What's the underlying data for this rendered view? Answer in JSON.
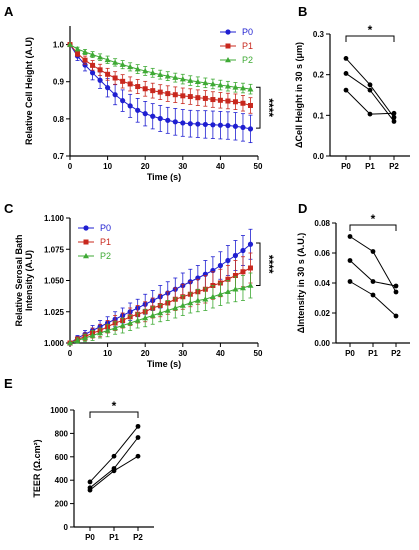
{
  "colors": {
    "P0": "#1f1fd1",
    "P1": "#c8281e",
    "P2": "#3faa35"
  },
  "chart_data": [
    {
      "panel": "A",
      "type": "line",
      "xlabel": "Time (s)",
      "ylabel": "Relative Cell Height (A.U)",
      "xlim": [
        0,
        50
      ],
      "ylim": [
        0.7,
        1.05
      ],
      "xticks": [
        0,
        10,
        20,
        30,
        40,
        50
      ],
      "yticks": [
        0.7,
        0.8,
        0.9,
        1.0
      ],
      "x": [
        0,
        2,
        4,
        6,
        8,
        10,
        12,
        14,
        16,
        18,
        20,
        22,
        24,
        26,
        28,
        30,
        32,
        34,
        36,
        38,
        40,
        42,
        44,
        46,
        48
      ],
      "series": [
        {
          "name": "P0",
          "marker": "circle",
          "values": [
            1.0,
            0.969,
            0.945,
            0.924,
            0.904,
            0.884,
            0.865,
            0.849,
            0.835,
            0.823,
            0.814,
            0.807,
            0.801,
            0.796,
            0.792,
            0.789,
            0.787,
            0.786,
            0.785,
            0.784,
            0.783,
            0.782,
            0.78,
            0.777,
            0.773
          ],
          "err": [
            0,
            0.012,
            0.016,
            0.019,
            0.022,
            0.025,
            0.027,
            0.029,
            0.031,
            0.032,
            0.033,
            0.034,
            0.035,
            0.035,
            0.036,
            0.036,
            0.036,
            0.036,
            0.037,
            0.037,
            0.037,
            0.037,
            0.037,
            0.037,
            0.037
          ]
        },
        {
          "name": "P1",
          "marker": "square",
          "values": [
            1.0,
            0.976,
            0.958,
            0.944,
            0.932,
            0.92,
            0.91,
            0.901,
            0.894,
            0.887,
            0.881,
            0.876,
            0.872,
            0.868,
            0.865,
            0.862,
            0.86,
            0.857,
            0.855,
            0.852,
            0.85,
            0.848,
            0.846,
            0.842,
            0.836
          ],
          "err": [
            0,
            0.008,
            0.011,
            0.013,
            0.015,
            0.016,
            0.017,
            0.018,
            0.019,
            0.019,
            0.02,
            0.02,
            0.02,
            0.021,
            0.021,
            0.021,
            0.021,
            0.021,
            0.021,
            0.021,
            0.021,
            0.021,
            0.021,
            0.021,
            0.021
          ]
        },
        {
          "name": "P2",
          "marker": "triangle",
          "values": [
            1.0,
            0.988,
            0.98,
            0.973,
            0.966,
            0.959,
            0.952,
            0.946,
            0.94,
            0.934,
            0.929,
            0.924,
            0.919,
            0.915,
            0.911,
            0.907,
            0.903,
            0.9,
            0.897,
            0.894,
            0.891,
            0.888,
            0.885,
            0.883,
            0.88
          ],
          "err": [
            0,
            0.005,
            0.007,
            0.008,
            0.009,
            0.01,
            0.01,
            0.011,
            0.011,
            0.012,
            0.012,
            0.012,
            0.012,
            0.012,
            0.012,
            0.013,
            0.013,
            0.013,
            0.013,
            0.013,
            0.013,
            0.013,
            0.013,
            0.013,
            0.013
          ]
        }
      ],
      "significance": "****",
      "legend": "top-right"
    },
    {
      "panel": "B",
      "type": "line",
      "ylabel": "ΔCell Height in 30 s (μm)",
      "categories": [
        "P0",
        "P1",
        "P2"
      ],
      "ylim": [
        0,
        0.3
      ],
      "yticks": [
        0.0,
        0.1,
        0.2,
        0.3
      ],
      "series": [
        {
          "values": [
            0.24,
            0.175,
            0.095
          ]
        },
        {
          "values": [
            0.203,
            0.162,
            0.085
          ]
        },
        {
          "values": [
            0.162,
            0.103,
            0.105
          ]
        }
      ],
      "significance": "*"
    },
    {
      "panel": "C",
      "type": "line",
      "xlabel": "Time (s)",
      "ylabel": "Relative Serosal Bath Intensity (A.U)",
      "xlim": [
        0,
        50
      ],
      "ylim": [
        1.0,
        1.1
      ],
      "xticks": [
        0,
        10,
        20,
        30,
        40,
        50
      ],
      "yticks": [
        1.0,
        1.025,
        1.05,
        1.075,
        1.1
      ],
      "x": [
        0,
        2,
        4,
        6,
        8,
        10,
        12,
        14,
        16,
        18,
        20,
        22,
        24,
        26,
        28,
        30,
        32,
        34,
        36,
        38,
        40,
        42,
        44,
        46,
        48
      ],
      "series": [
        {
          "name": "P0",
          "marker": "circle",
          "values": [
            1.0,
            1.004,
            1.007,
            1.01,
            1.013,
            1.016,
            1.019,
            1.022,
            1.025,
            1.028,
            1.031,
            1.034,
            1.037,
            1.04,
            1.043,
            1.046,
            1.049,
            1.052,
            1.055,
            1.058,
            1.062,
            1.066,
            1.07,
            1.074,
            1.079
          ],
          "err": [
            0,
            0.002,
            0.003,
            0.004,
            0.005,
            0.005,
            0.006,
            0.006,
            0.007,
            0.007,
            0.008,
            0.008,
            0.009,
            0.009,
            0.009,
            0.01,
            0.01,
            0.01,
            0.011,
            0.011,
            0.011,
            0.012,
            0.012,
            0.012,
            0.012
          ]
        },
        {
          "name": "P1",
          "marker": "square",
          "values": [
            1.0,
            1.003,
            1.005,
            1.008,
            1.01,
            1.013,
            1.016,
            1.018,
            1.021,
            1.023,
            1.025,
            1.028,
            1.03,
            1.032,
            1.035,
            1.037,
            1.039,
            1.041,
            1.043,
            1.046,
            1.048,
            1.051,
            1.054,
            1.057,
            1.06
          ],
          "err": [
            0,
            0.002,
            0.003,
            0.004,
            0.005,
            0.005,
            0.006,
            0.006,
            0.007,
            0.007,
            0.008,
            0.008,
            0.009,
            0.009,
            0.009,
            0.01,
            0.01,
            0.01,
            0.011,
            0.011,
            0.011,
            0.011,
            0.012,
            0.012,
            0.012
          ]
        },
        {
          "name": "P2",
          "marker": "triangle",
          "values": [
            1.0,
            1.002,
            1.004,
            1.006,
            1.008,
            1.01,
            1.012,
            1.014,
            1.016,
            1.018,
            1.02,
            1.022,
            1.024,
            1.026,
            1.028,
            1.03,
            1.032,
            1.034,
            1.035,
            1.037,
            1.039,
            1.041,
            1.043,
            1.044,
            1.046
          ],
          "err": [
            0,
            0.002,
            0.003,
            0.004,
            0.004,
            0.005,
            0.005,
            0.006,
            0.006,
            0.006,
            0.007,
            0.007,
            0.007,
            0.008,
            0.008,
            0.008,
            0.008,
            0.009,
            0.009,
            0.009,
            0.009,
            0.009,
            0.01,
            0.01,
            0.01
          ]
        }
      ],
      "significance": "****",
      "legend": "top-left"
    },
    {
      "panel": "D",
      "type": "line",
      "ylabel": "ΔIntensity in 30 s (A.U.)",
      "categories": [
        "P0",
        "P1",
        "P2"
      ],
      "ylim": [
        0,
        0.08
      ],
      "yticks": [
        0.0,
        0.02,
        0.04,
        0.06,
        0.08
      ],
      "series": [
        {
          "values": [
            0.071,
            0.061,
            0.034
          ]
        },
        {
          "values": [
            0.055,
            0.041,
            0.038
          ]
        },
        {
          "values": [
            0.041,
            0.032,
            0.018
          ]
        }
      ],
      "significance": "*"
    },
    {
      "panel": "E",
      "type": "line",
      "ylabel": "TEER (Ω.cm²)",
      "categories": [
        "P0",
        "P1",
        "P2"
      ],
      "ylim": [
        0,
        1000
      ],
      "yticks": [
        0,
        200,
        400,
        600,
        800,
        1000
      ],
      "series": [
        {
          "values": [
            385,
            605,
            860
          ]
        },
        {
          "values": [
            335,
            500,
            765
          ]
        },
        {
          "values": [
            315,
            480,
            605
          ]
        }
      ],
      "significance": "*"
    }
  ]
}
